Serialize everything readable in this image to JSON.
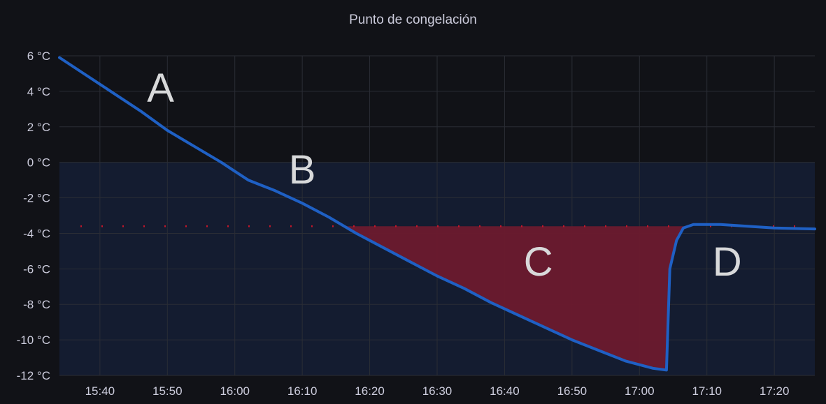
{
  "panel": {
    "title": "Punto de congelación"
  },
  "colors": {
    "background": "#111217",
    "below_zero_band": "#141c30",
    "grid": "#2a2d35",
    "series_line": "#1f60c4",
    "threshold": "#c4162a",
    "supercooling_fill": "#6b1a2e",
    "text": "#ccccdc"
  },
  "chart_data": {
    "type": "line",
    "title": "Punto de congelación",
    "xlabel": "",
    "ylabel": "",
    "x_unit": "time",
    "y_unit": "°C",
    "ylim": [
      -12,
      6
    ],
    "xlim": [
      "15:34",
      "17:26"
    ],
    "x_ticks": [
      "15:40",
      "15:50",
      "16:00",
      "16:10",
      "16:20",
      "16:30",
      "16:40",
      "16:50",
      "17:00",
      "17:10",
      "17:20"
    ],
    "y_ticks": [
      "6 °C",
      "4 °C",
      "2 °C",
      "0 °C",
      "-2 °C",
      "-4 °C",
      "-6 °C",
      "-8 °C",
      "-10 °C",
      "-12 °C"
    ],
    "y_tick_values": [
      6,
      4,
      2,
      0,
      -2,
      -4,
      -6,
      -8,
      -10,
      -12
    ],
    "grid": true,
    "legend": "none",
    "below_zero_band": [
      -12,
      0
    ],
    "threshold": {
      "value": -3.6,
      "style": "dotted"
    },
    "series": [
      {
        "points": [
          [
            "15:34",
            5.9
          ],
          [
            "15:38",
            4.9
          ],
          [
            "15:42",
            3.9
          ],
          [
            "15:46",
            2.9
          ],
          [
            "15:50",
            1.8
          ],
          [
            "15:54",
            0.9
          ],
          [
            "15:58",
            0.0
          ],
          [
            "16:00",
            -0.5
          ],
          [
            "16:02",
            -1.0
          ],
          [
            "16:06",
            -1.6
          ],
          [
            "16:10",
            -2.3
          ],
          [
            "16:14",
            -3.1
          ],
          [
            "16:18",
            -4.0
          ],
          [
            "16:22",
            -4.8
          ],
          [
            "16:26",
            -5.6
          ],
          [
            "16:30",
            -6.4
          ],
          [
            "16:34",
            -7.1
          ],
          [
            "16:38",
            -7.9
          ],
          [
            "16:42",
            -8.6
          ],
          [
            "16:46",
            -9.3
          ],
          [
            "16:50",
            -10.0
          ],
          [
            "16:54",
            -10.6
          ],
          [
            "16:58",
            -11.2
          ],
          [
            "17:02",
            -11.6
          ],
          [
            "17:04",
            -11.7
          ],
          [
            "17:04.5",
            -6.0
          ],
          [
            "17:05.5",
            -4.4
          ],
          [
            "17:06.5",
            -3.7
          ],
          [
            "17:08",
            -3.5
          ],
          [
            "17:12",
            -3.5
          ],
          [
            "17:16",
            -3.6
          ],
          [
            "17:20",
            -3.7
          ],
          [
            "17:26",
            -3.75
          ]
        ]
      }
    ],
    "annotations": [
      {
        "text": "A",
        "x": "15:49",
        "y": 4.2
      },
      {
        "text": "B",
        "x": "16:10",
        "y": -0.4
      },
      {
        "text": "C",
        "x": "16:45",
        "y": -5.6
      },
      {
        "text": "D",
        "x": "17:13",
        "y": -5.6
      }
    ]
  }
}
